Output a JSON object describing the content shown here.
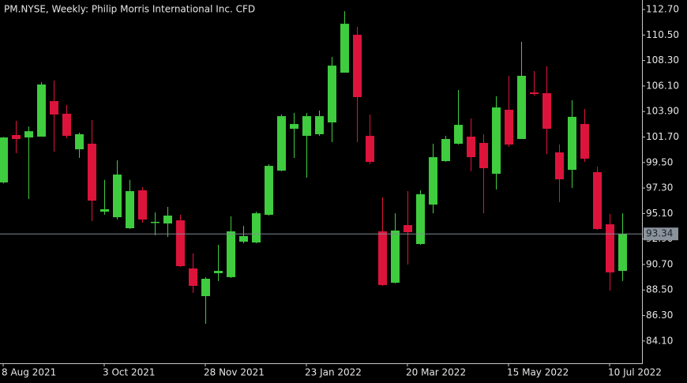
{
  "chart_data": {
    "type": "candlestick",
    "title": "PM.NYSE, Weekly:  Philip Morris International Inc. CFD",
    "categories": [
      "8 Aug 2021",
      null,
      null,
      null,
      null,
      null,
      null,
      null,
      "3 Oct 2021",
      null,
      null,
      null,
      null,
      null,
      null,
      null,
      "28 Nov 2021",
      null,
      null,
      null,
      null,
      null,
      null,
      null,
      "23 Jan 2022",
      null,
      null,
      null,
      null,
      null,
      null,
      null,
      "20 Mar 2022",
      null,
      null,
      null,
      null,
      null,
      null,
      null,
      "15 May 2022",
      null,
      null,
      null,
      null,
      null,
      null,
      null,
      "10 Jul 2022",
      null
    ],
    "open": [
      97.78,
      101.87,
      101.66,
      101.73,
      104.8,
      103.71,
      100.64,
      101.12,
      95.26,
      94.78,
      93.83,
      97.1,
      94.31,
      94.24,
      94.51,
      90.36,
      87.97,
      89.95,
      89.61,
      92.67,
      92.6,
      94.99,
      98.8,
      102.41,
      101.8,
      101.94,
      102.96,
      107.25,
      110.52,
      101.8,
      93.56,
      89.13,
      94.1,
      92.47,
      95.87,
      99.62,
      101.12,
      101.73,
      101.19,
      98.53,
      104.05,
      101.53,
      105.55,
      105.48,
      100.37,
      98.87,
      102.82,
      98.67,
      94.17,
      90.15
    ],
    "high": [
      101.7,
      103.1,
      102.6,
      106.43,
      106.57,
      104.46,
      102.07,
      103.16,
      98.0,
      99.69,
      98.0,
      97.37,
      95.19,
      95.67,
      94.99,
      91.65,
      89.61,
      92.4,
      94.85,
      94.03,
      95.26,
      99.35,
      103.64,
      103.78,
      103.78,
      103.98,
      108.61,
      112.56,
      111.2,
      103.64,
      96.49,
      95.12,
      97.03,
      97.1,
      101.12,
      101.8,
      105.75,
      103.3,
      101.94,
      105.21,
      106.98,
      109.91,
      107.39,
      107.8,
      101.05,
      104.87,
      104.12,
      99.14,
      95.06,
      95.12
    ],
    "low": [
      97.7,
      100.3,
      96.35,
      101.73,
      100.44,
      101.6,
      99.9,
      94.44,
      94.99,
      94.58,
      93.76,
      94.31,
      93.22,
      93.08,
      90.49,
      88.24,
      85.59,
      89.27,
      89.54,
      92.54,
      92.54,
      94.92,
      98.74,
      99.89,
      98.19,
      101.8,
      101.26,
      107.25,
      101.26,
      99.35,
      88.86,
      89.06,
      90.7,
      92.4,
      95.12,
      99.55,
      101.05,
      98.74,
      95.12,
      97.17,
      100.85,
      101.53,
      105.28,
      100.23,
      96.08,
      97.3,
      99.55,
      93.69,
      88.45,
      89.27
    ],
    "close": [
      101.66,
      101.53,
      102.2,
      106.23,
      103.64,
      101.8,
      101.94,
      96.21,
      95.47,
      98.46,
      97.03,
      94.58,
      94.38,
      94.92,
      90.56,
      88.86,
      89.47,
      90.15,
      93.56,
      93.15,
      95.12,
      99.21,
      103.5,
      102.82,
      103.5,
      103.5,
      107.86,
      111.47,
      105.14,
      99.55,
      88.93,
      93.63,
      93.49,
      96.76,
      99.96,
      101.53,
      102.75,
      99.96,
      99.01,
      104.25,
      101.05,
      106.98,
      105.41,
      102.41,
      98.05,
      103.44,
      99.83,
      93.76,
      90.02,
      93.34
    ],
    "up_color": "#3fcc3f",
    "down_color": "#dc143c",
    "last_price": 93.34,
    "ylim": [
      82.18,
      113.52
    ],
    "yticks": [
      {
        "value": 112.7,
        "label": "112.70"
      },
      {
        "value": 110.5,
        "label": "110.50"
      },
      {
        "value": 108.3,
        "label": "108.30"
      },
      {
        "value": 106.1,
        "label": "106.10"
      },
      {
        "value": 103.9,
        "label": "103.90"
      },
      {
        "value": 101.7,
        "label": "101.70"
      },
      {
        "value": 99.5,
        "label": "99.50"
      },
      {
        "value": 97.3,
        "label": "97.30"
      },
      {
        "value": 95.1,
        "label": "95.10"
      },
      {
        "value": 92.9,
        "label": "92.90"
      },
      {
        "value": 90.7,
        "label": "90.70"
      },
      {
        "value": 88.5,
        "label": "88.50"
      },
      {
        "value": 86.3,
        "label": "86.30"
      },
      {
        "value": 84.1,
        "label": "84.10"
      }
    ]
  }
}
